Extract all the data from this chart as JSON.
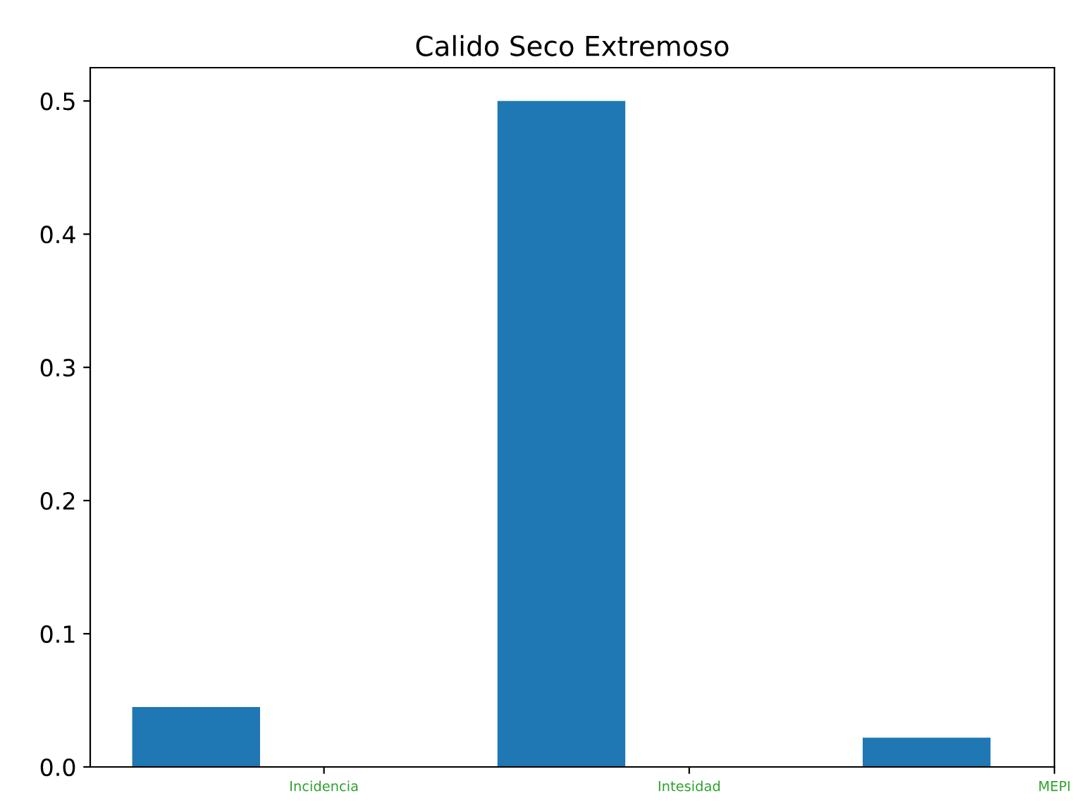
{
  "chart_data": {
    "type": "bar",
    "title": "Calido Seco Extremoso",
    "categories": [
      "Incidencia",
      "Intesidad",
      "MEPI"
    ],
    "values": [
      0.045,
      0.5,
      0.022
    ],
    "color": "#1f77b4",
    "ylim": [
      0,
      0.525
    ],
    "yticks": [
      {
        "value": 0,
        "label": "0.0"
      },
      0.1,
      0.2,
      0.3,
      0.4,
      0.5
    ],
    "grid": false
  }
}
